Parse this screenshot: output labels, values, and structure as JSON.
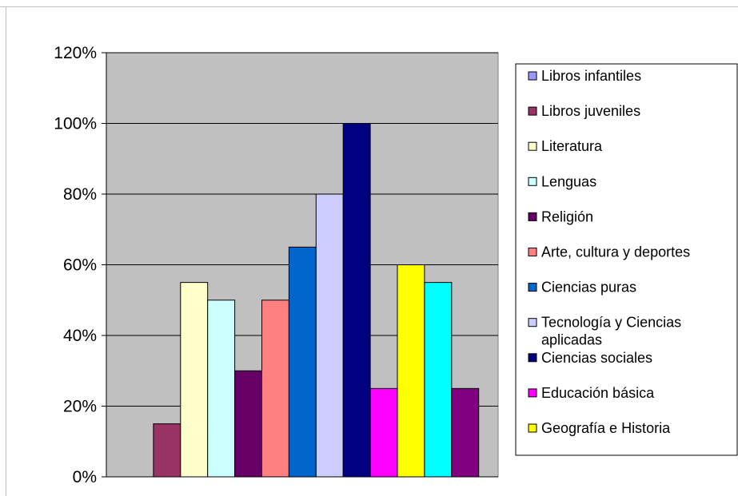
{
  "chart_data": {
    "type": "bar",
    "title": "",
    "xlabel": "",
    "ylabel": "",
    "ylim": [
      0,
      1.2
    ],
    "y_ticks": [
      "0%",
      "20%",
      "40%",
      "60%",
      "80%",
      "100%",
      "120%"
    ],
    "grid": true,
    "legend_position": "right",
    "plot_background": "#c0c0c0",
    "series": [
      {
        "name": "Libros infantiles",
        "value": 0.0,
        "color": "#9999ff"
      },
      {
        "name": "Libros juveniles",
        "value": 0.15,
        "color": "#993366"
      },
      {
        "name": "Literatura",
        "value": 0.55,
        "color": "#ffffcc"
      },
      {
        "name": "Lenguas",
        "value": 0.5,
        "color": "#ccffff"
      },
      {
        "name": "Religión",
        "value": 0.3,
        "color": "#660066"
      },
      {
        "name": "Arte, cultura y deportes",
        "value": 0.5,
        "color": "#ff8080"
      },
      {
        "name": "Ciencias puras",
        "value": 0.65,
        "color": "#0066cc"
      },
      {
        "name": "Tecnología y Ciencias aplicadas",
        "value": 0.8,
        "color": "#ccccff"
      },
      {
        "name": "Ciencias sociales",
        "value": 1.0,
        "color": "#000080"
      },
      {
        "name": "Educación básica",
        "value": 0.25,
        "color": "#ff00ff"
      },
      {
        "name": "Geografía e Historia",
        "value": 0.6,
        "color": "#ffff00"
      },
      {
        "name": "",
        "value": 0.55,
        "color": "#00ffff"
      },
      {
        "name": "",
        "value": 0.25,
        "color": "#800080"
      }
    ]
  }
}
